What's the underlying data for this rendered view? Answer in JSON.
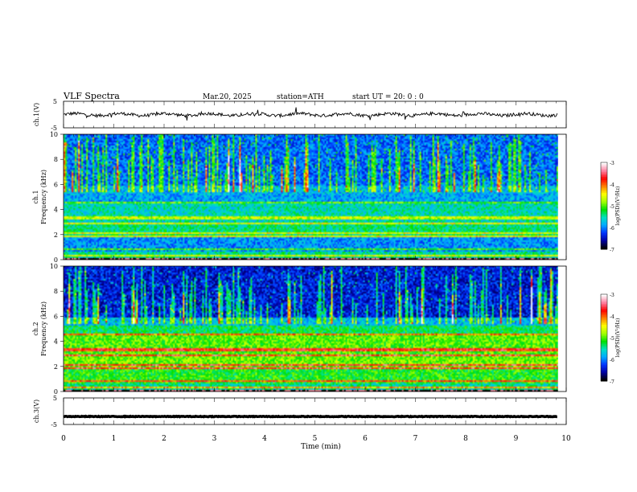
{
  "header": {
    "title": "VLF  Spectra",
    "date": "Mar.20, 2025",
    "station": "station=ATH",
    "start": "start  UT  =   20: 0  : 0"
  },
  "chart_data": [
    {
      "type": "line",
      "panel": "ch1-waveform",
      "ylabel": "ch.1(V)",
      "ylim": [
        -5,
        5
      ],
      "y_tick_labels": [
        "5",
        "-5"
      ],
      "xlim": [
        0,
        10
      ],
      "description_level": "noisy trace centered near 0 V"
    },
    {
      "type": "heatmap",
      "panel": "ch1-spectrogram",
      "ylabel": "ch.1\nFrequency  (kHz)",
      "ylim": [
        0,
        10
      ],
      "y_tick_labels": [
        "0",
        "2",
        "4",
        "6",
        "8",
        "10"
      ],
      "xlim": [
        0,
        10
      ],
      "colorbar": {
        "label": "log(PSD)(V²/Hz)",
        "range": [
          -7,
          -3
        ],
        "ticks": [
          "-3",
          "-4",
          "-5",
          "-6",
          "-7"
        ]
      }
    },
    {
      "type": "heatmap",
      "panel": "ch2-spectrogram",
      "ylabel": "ch.2\nFrequency  (kHz)",
      "ylim": [
        0,
        10
      ],
      "y_tick_labels": [
        "0",
        "2",
        "4",
        "6",
        "8",
        "10"
      ],
      "xlim": [
        0,
        10
      ],
      "colorbar": {
        "label": "log(PSD)(V²/Hz)",
        "range": [
          -7,
          -3
        ],
        "ticks": [
          "-3",
          "-4",
          "-5",
          "-6",
          "-7"
        ]
      }
    },
    {
      "type": "line",
      "panel": "ch3-waveform",
      "ylabel": "ch.3(V)",
      "ylim": [
        -5,
        5
      ],
      "y_tick_labels": [
        "5",
        "-5"
      ],
      "xlim": [
        0,
        10
      ],
      "description_level": "flat trace at about -2 V"
    }
  ],
  "xaxis": {
    "label": "Time  (min)",
    "ticks": [
      "0",
      "1",
      "2",
      "3",
      "4",
      "5",
      "6",
      "7",
      "8",
      "9",
      "10"
    ]
  },
  "colors": {
    "background": "#ffffff",
    "axis": "#000000",
    "colormap": [
      "#000000",
      "#0000a0",
      "#0033ff",
      "#00aaff",
      "#00e0c0",
      "#00e000",
      "#a0ff00",
      "#ffff00",
      "#ff8000",
      "#ff0000",
      "#ff80a0",
      "#ffffff"
    ]
  }
}
